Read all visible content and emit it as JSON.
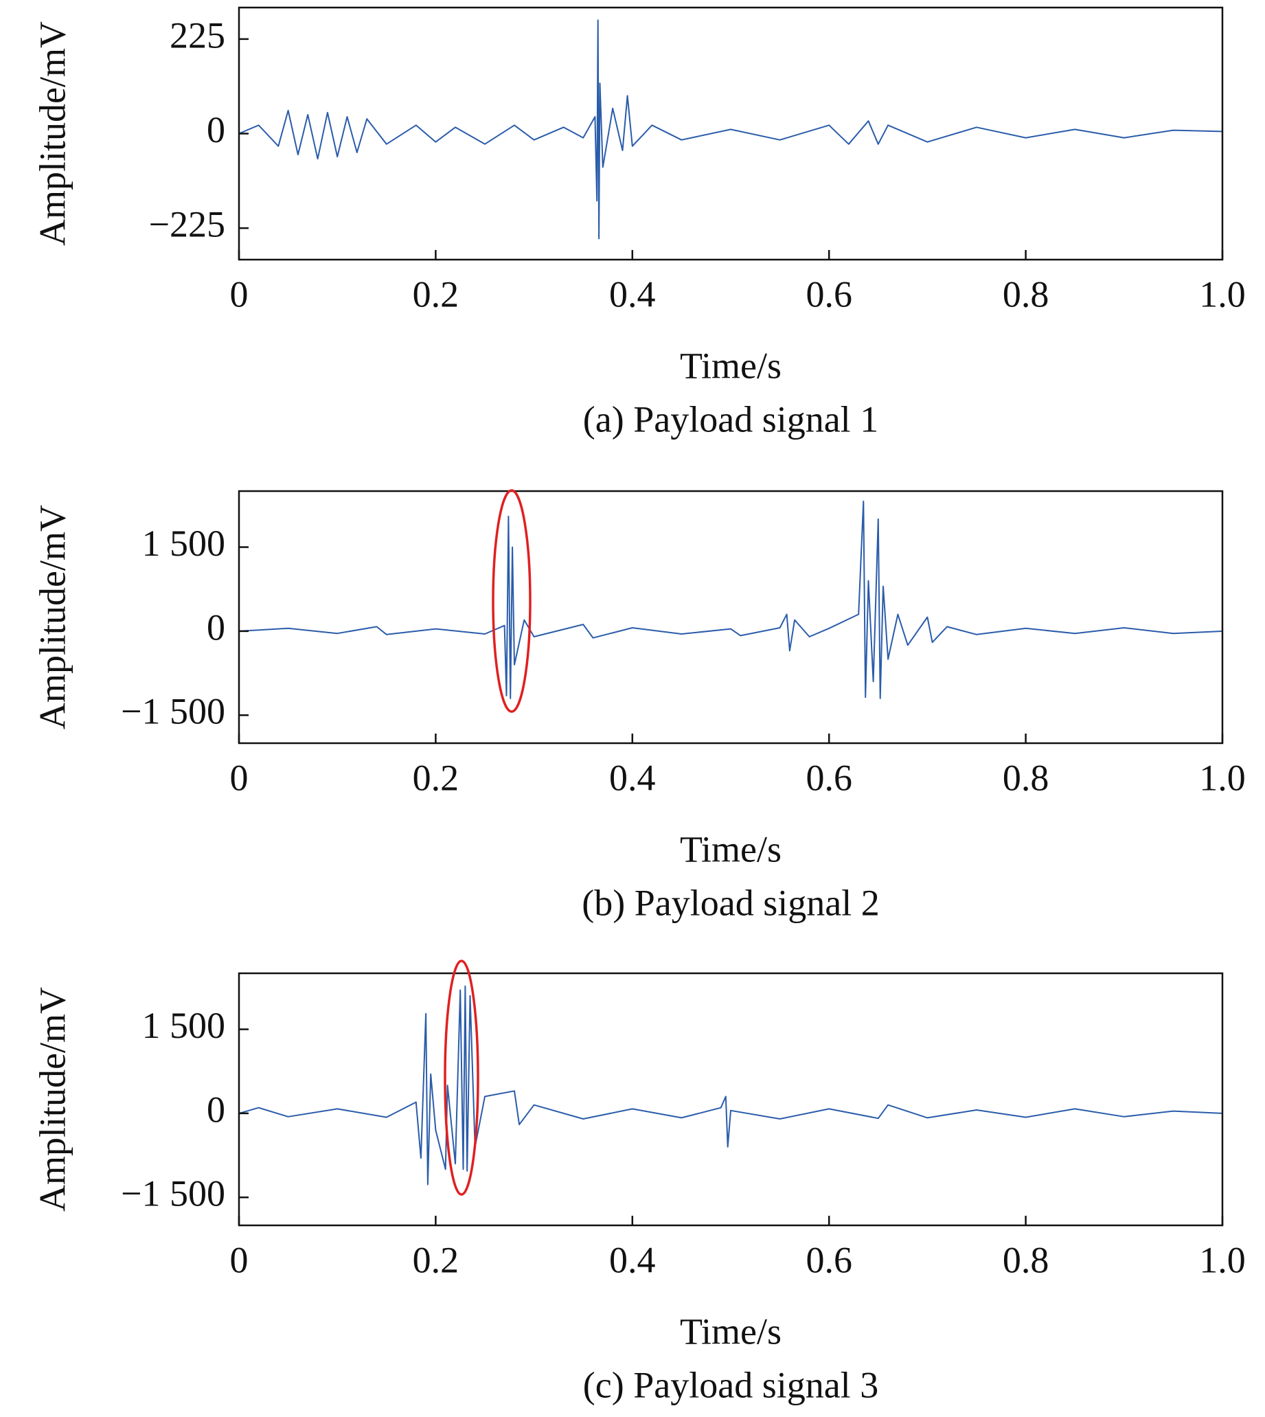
{
  "chart_data": [
    {
      "type": "line",
      "title": "(a) Payload signal 1",
      "xlabel": "Time/s",
      "ylabel": "Amplitude/mV",
      "color": "#2a5caa",
      "x": [
        0,
        0.02,
        0.04,
        0.05,
        0.06,
        0.07,
        0.08,
        0.09,
        0.1,
        0.11,
        0.12,
        0.13,
        0.15,
        0.18,
        0.2,
        0.22,
        0.25,
        0.28,
        0.3,
        0.33,
        0.35,
        0.362,
        0.364,
        0.365,
        0.366,
        0.367,
        0.37,
        0.38,
        0.39,
        0.395,
        0.4,
        0.42,
        0.45,
        0.5,
        0.55,
        0.6,
        0.62,
        0.64,
        0.65,
        0.66,
        0.7,
        0.75,
        0.8,
        0.85,
        0.9,
        0.95,
        1.0
      ],
      "values": [
        0,
        20,
        -30,
        55,
        -50,
        45,
        -60,
        50,
        -55,
        40,
        -45,
        35,
        -25,
        20,
        -20,
        15,
        -25,
        20,
        -15,
        15,
        -10,
        40,
        -160,
        270,
        -250,
        120,
        -80,
        60,
        -40,
        90,
        -30,
        20,
        -15,
        10,
        -15,
        20,
        -25,
        30,
        -25,
        20,
        -20,
        15,
        -10,
        10,
        -10,
        8,
        5
      ],
      "xlim": [
        0,
        1
      ],
      "xticks": [
        0,
        0.2,
        0.4,
        0.6,
        0.8,
        {
          "value": 1,
          "label": "1.0"
        }
      ],
      "ylim": [
        -300,
        300
      ],
      "yticks": [
        {
          "value": -225,
          "label": "−225"
        },
        0,
        225
      ]
    },
    {
      "type": "line",
      "title": "(b) Payload signal 2",
      "xlabel": "Time/s",
      "ylabel": "Amplitude/mV",
      "color": "#2a5caa",
      "x": [
        0,
        0.05,
        0.1,
        0.14,
        0.15,
        0.2,
        0.25,
        0.27,
        0.272,
        0.274,
        0.276,
        0.278,
        0.28,
        0.29,
        0.3,
        0.35,
        0.36,
        0.4,
        0.45,
        0.5,
        0.51,
        0.55,
        0.557,
        0.56,
        0.565,
        0.58,
        0.6,
        0.63,
        0.635,
        0.637,
        0.64,
        0.645,
        0.65,
        0.652,
        0.655,
        0.66,
        0.67,
        0.68,
        0.7,
        0.705,
        0.72,
        0.75,
        0.8,
        0.85,
        0.9,
        0.95,
        1.0
      ],
      "values": [
        0,
        50,
        -40,
        80,
        -60,
        40,
        -50,
        100,
        -1150,
        2050,
        -1200,
        1500,
        -600,
        200,
        -100,
        120,
        -120,
        60,
        -50,
        40,
        -80,
        60,
        300,
        -350,
        200,
        -100,
        50,
        300,
        2320,
        -1180,
        900,
        -900,
        2000,
        -1200,
        800,
        -500,
        300,
        -250,
        250,
        -200,
        80,
        -60,
        50,
        -40,
        60,
        -40,
        0
      ],
      "xlim": [
        0,
        1
      ],
      "xticks": [
        0,
        0.2,
        0.4,
        0.6,
        0.8,
        {
          "value": 1,
          "label": "1.0"
        }
      ],
      "ylim": [
        -2000,
        2500
      ],
      "yticks": [
        {
          "value": -1500,
          "label": "−1 500"
        },
        0,
        {
          "value": 1500,
          "label": "1 500"
        }
      ]
    },
    {
      "type": "line",
      "title": "(c) Payload signal 3",
      "xlabel": "Time/s",
      "ylabel": "Amplitude/mV",
      "color": "#2a5caa",
      "x": [
        0,
        0.02,
        0.05,
        0.1,
        0.15,
        0.18,
        0.185,
        0.19,
        0.192,
        0.195,
        0.2,
        0.21,
        0.212,
        0.22,
        0.225,
        0.228,
        0.23,
        0.232,
        0.235,
        0.24,
        0.25,
        0.28,
        0.285,
        0.3,
        0.35,
        0.4,
        0.45,
        0.49,
        0.495,
        0.497,
        0.5,
        0.55,
        0.6,
        0.65,
        0.66,
        0.7,
        0.75,
        0.8,
        0.85,
        0.9,
        0.95,
        1.0
      ],
      "values": [
        0,
        100,
        -60,
        80,
        -70,
        200,
        -800,
        1780,
        -1270,
        700,
        -300,
        -1000,
        500,
        -900,
        2200,
        -1000,
        2270,
        -1030,
        2100,
        -600,
        300,
        400,
        -200,
        150,
        -100,
        80,
        -80,
        100,
        300,
        -600,
        50,
        -100,
        80,
        -90,
        150,
        -80,
        60,
        -70,
        80,
        -60,
        40,
        0
      ],
      "xlim": [
        0,
        1
      ],
      "xticks": [
        0,
        0.2,
        0.4,
        0.6,
        0.8,
        {
          "value": 1,
          "label": "1.0"
        }
      ],
      "ylim": [
        -2000,
        2500
      ],
      "yticks": [
        {
          "value": -1500,
          "label": "−1 500"
        },
        0,
        {
          "value": 1500,
          "label": "1 500"
        }
      ]
    }
  ]
}
